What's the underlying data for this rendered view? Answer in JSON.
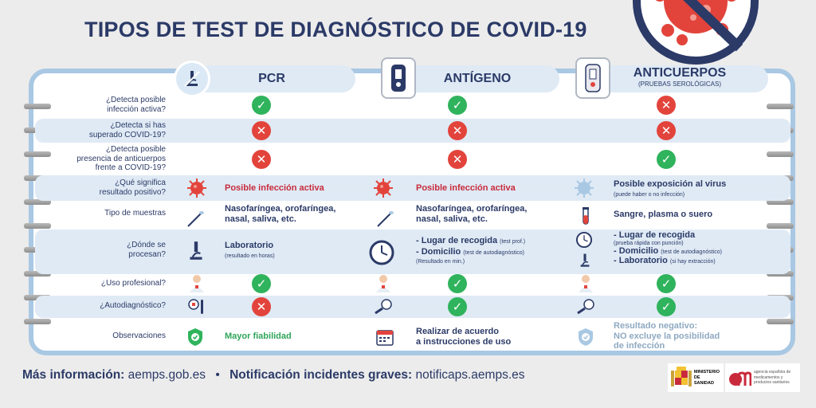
{
  "title": "TIPOS DE TEST DE DIAGNÓSTICO DE COVID-19",
  "columns": [
    {
      "name": "PCR",
      "subtitle": ""
    },
    {
      "name": "ANTÍGENO",
      "subtitle": ""
    },
    {
      "name": "ANTICUERPOS",
      "subtitle": "(PRUEBAS SEROLÓGICAS)"
    }
  ],
  "rows": {
    "r1": {
      "q1": "¿Detecta posible",
      "q2": "infección activa?",
      "marks": [
        "yes",
        "yes",
        "no"
      ]
    },
    "r2": {
      "q1": "¿Detecta si has",
      "q2": "superado COVID-19?",
      "marks": [
        "no",
        "no",
        "no"
      ]
    },
    "r3": {
      "q1": "¿Detecta posible",
      "q2": "presencia de anticuerpos",
      "q3": "frente a COVID-19?",
      "marks": [
        "no",
        "no",
        "yes"
      ]
    },
    "r4": {
      "q1": "¿Qué significa",
      "q2": "resultado positivo?",
      "pcr": "Posible infección activa",
      "ant": "Posible infección activa",
      "anti": "Posible exposición al virus",
      "anti_small": "(puede haber o no infección)"
    },
    "r5": {
      "q1": "Tipo de muestras",
      "pcr1": "Nasofaríngea, orofaríngea,",
      "pcr2": "nasal, saliva, etc.",
      "ant1": "Nasofaríngea, orofaríngea,",
      "ant2": "nasal, saliva, etc.",
      "anti": "Sangre, plasma o suero"
    },
    "r6": {
      "q1": "¿Dónde se",
      "q2": "procesan?",
      "pcr": "Laboratorio",
      "pcr_small": "(resultado en horas)",
      "ant1": "- Lugar de recogida",
      "ant1_small": "(test prof.)",
      "ant2": "- Domicilio",
      "ant2_small": "(test de autodiagnóstico)",
      "ant3_small": "(Resultado en min.)",
      "anti1": "- Lugar de recogida",
      "anti1_small": "(prueba rápida con punción)",
      "anti2": "- Domicilio",
      "anti2_small": "(test de autodiagnóstico)",
      "anti3": "- Laboratorio",
      "anti3_small": "(si hay extracción)"
    },
    "r7": {
      "q1": "¿Uso profesional?",
      "marks": [
        "yes",
        "yes",
        "yes"
      ]
    },
    "r8": {
      "q1": "¿Autodiagnóstico?",
      "marks": [
        "no",
        "yes",
        "yes"
      ]
    },
    "r9": {
      "q1": "Observaciones",
      "pcr": "Mayor fiabilidad",
      "ant1": "Realizar de acuerdo",
      "ant2": "a instrucciones de uso",
      "anti1": "Resultado negativo:",
      "anti2": "NO excluye la posibilidad",
      "anti3": "de infección"
    }
  },
  "footer": {
    "info_label": "Más información:",
    "info_value": "aemps.gob.es",
    "bullet": "•",
    "notif_label": "Notificación incidentes graves:",
    "notif_value": "notificaps.aemps.es"
  },
  "logos": {
    "ministerio1": "MINISTERIO",
    "ministerio2": "DE SANIDAD",
    "aemps1": "agencia española de",
    "aemps2": "medicamentos y",
    "aemps3": "productos sanitarios"
  },
  "symbols": {
    "yes": "✓",
    "no": "✕"
  },
  "colors": {
    "yes": "#2fb35c",
    "no": "#e2443c",
    "navy": "#2b3a67",
    "accent_red": "#c92a3b"
  }
}
